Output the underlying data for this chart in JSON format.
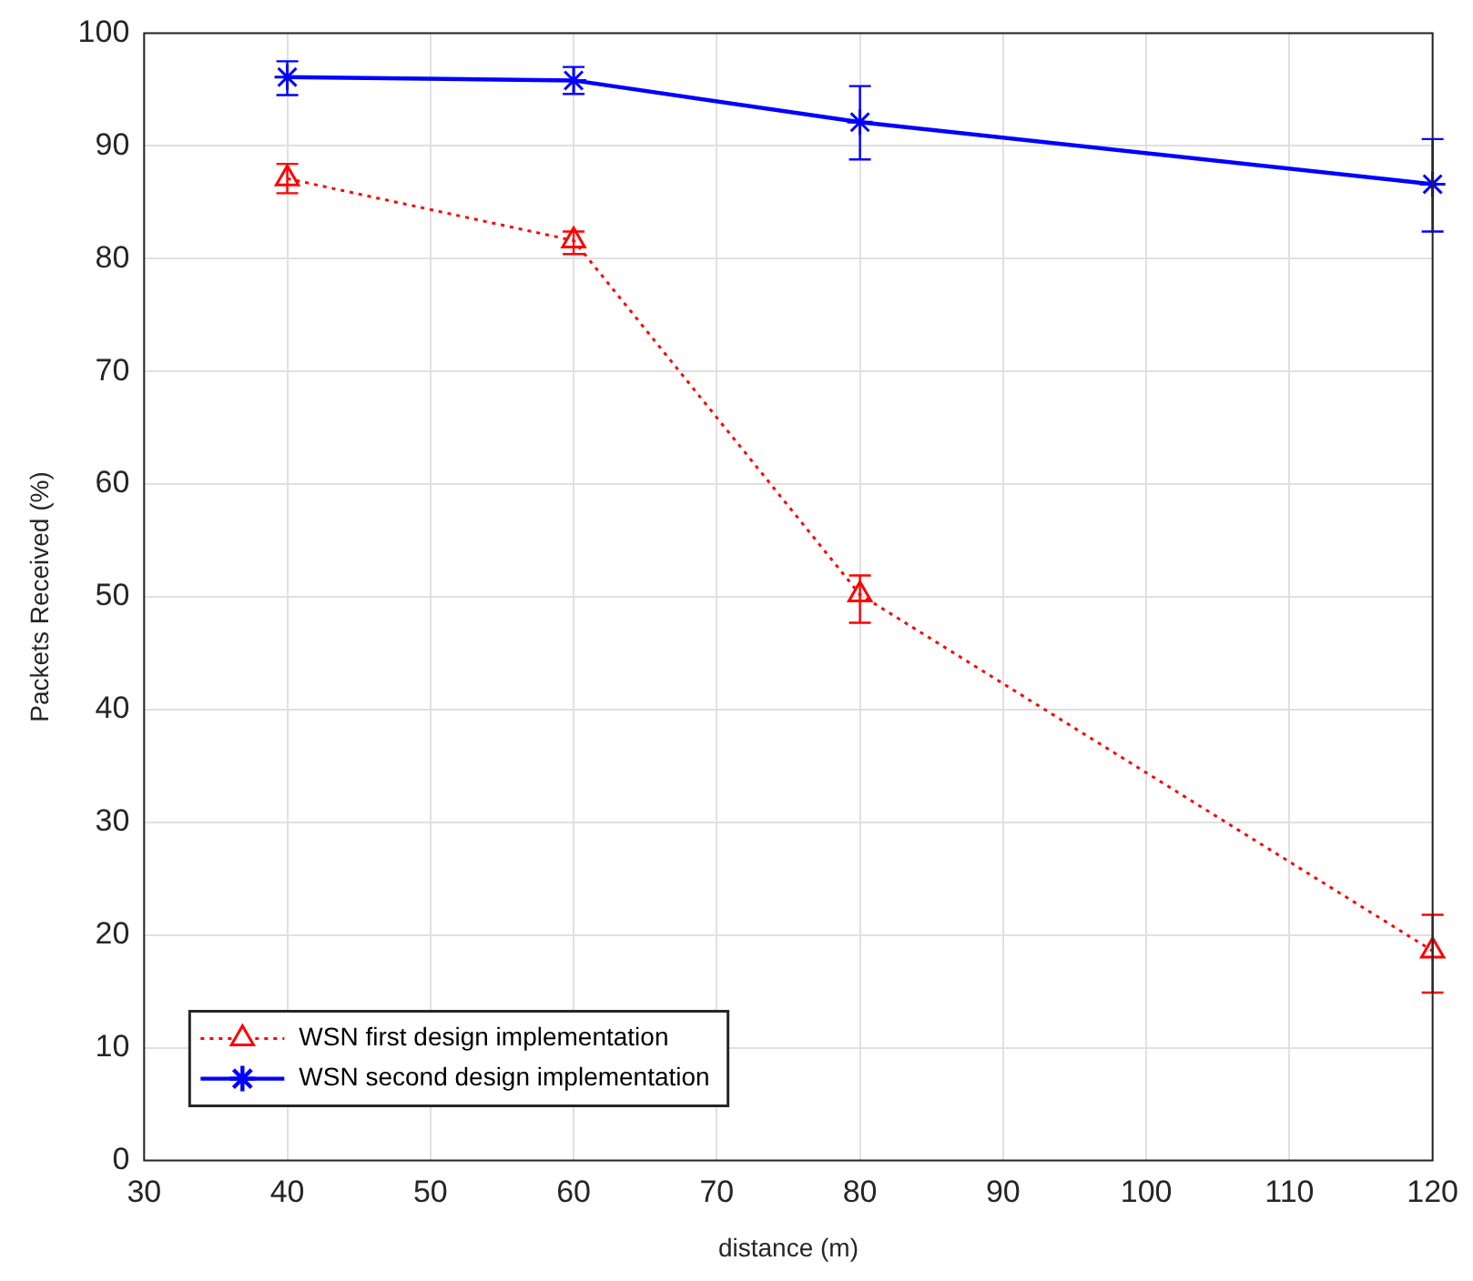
{
  "chart_data": {
    "type": "line",
    "xlabel": "distance (m)",
    "ylabel": "Packets Received (%)",
    "x": [
      40,
      60,
      80,
      120
    ],
    "series": [
      {
        "name": "WSN first design implementation",
        "color": "#ff0000",
        "marker": "triangle",
        "line_style": "dotted",
        "values": [
          87.1,
          81.6,
          50.2,
          18.6
        ],
        "errors": [
          [
            85.8,
            88.4
          ],
          [
            80.4,
            82.4
          ],
          [
            47.7,
            51.9
          ],
          [
            14.9,
            21.8
          ]
        ]
      },
      {
        "name": "WSN second design implementation",
        "color": "#0000ff",
        "marker": "cross",
        "line_style": "solid",
        "values": [
          96.1,
          95.8,
          92.1,
          86.6
        ],
        "errors": [
          [
            94.5,
            97.5
          ],
          [
            94.6,
            97.0
          ],
          [
            88.8,
            95.3
          ],
          [
            82.4,
            90.6
          ]
        ]
      }
    ],
    "xlim": [
      30,
      120
    ],
    "xticks": [
      30,
      40,
      50,
      60,
      70,
      80,
      90,
      100,
      110,
      120
    ],
    "ylim": [
      0,
      100
    ],
    "yticks": [
      0,
      10,
      20,
      30,
      40,
      50,
      60,
      70,
      80,
      90,
      100
    ],
    "grid": true,
    "legend": "bottom left"
  }
}
